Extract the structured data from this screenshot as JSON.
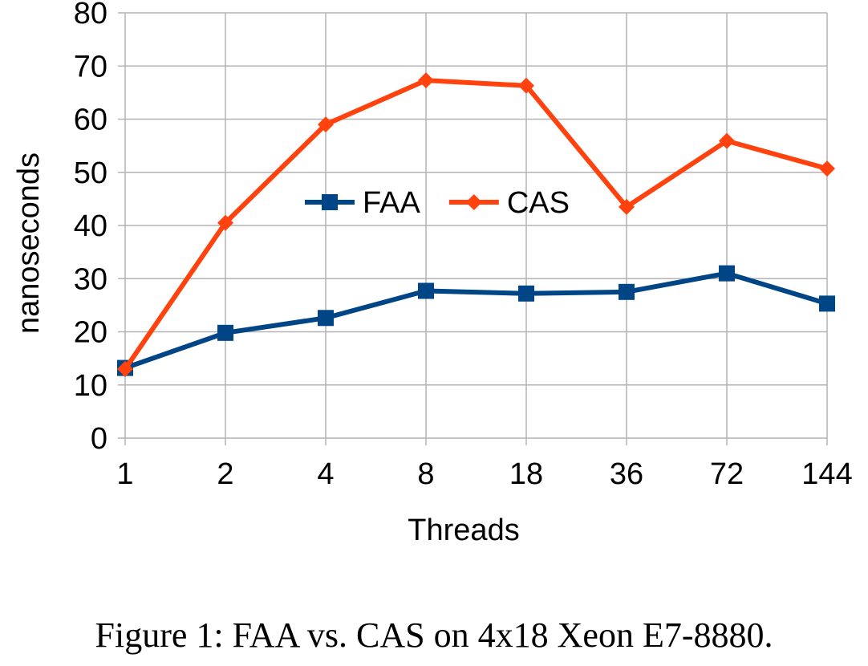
{
  "chart_data": {
    "type": "line",
    "categories": [
      "1",
      "2",
      "4",
      "8",
      "18",
      "36",
      "72",
      "144"
    ],
    "series": [
      {
        "name": "FAA",
        "values": [
          13.2,
          19.8,
          22.6,
          27.7,
          27.2,
          27.5,
          31.0,
          25.3
        ],
        "color": "#004586",
        "marker": "square"
      },
      {
        "name": "CAS",
        "values": [
          13.0,
          40.5,
          59.0,
          67.3,
          66.3,
          43.5,
          55.9,
          50.7
        ],
        "color": "#ff420e",
        "marker": "diamond"
      }
    ],
    "xlabel": "Threads",
    "ylabel": "nanoseconds",
    "ylim": [
      0,
      80
    ],
    "yticks": [
      0,
      10,
      20,
      30,
      40,
      50,
      60,
      70,
      80
    ],
    "grid": true,
    "legend": "inside-top-center"
  },
  "caption": "Figure 1: FAA vs. CAS on 4x18 Xeon E7-8880."
}
